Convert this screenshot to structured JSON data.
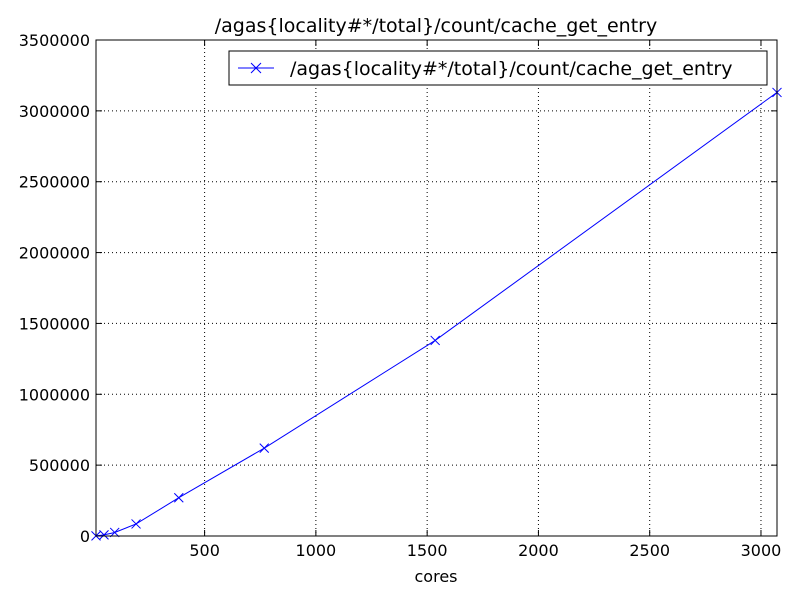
{
  "chart_data": {
    "type": "line",
    "title": "/agas{locality#*/total}/count/cache_get_entry",
    "xlabel": "cores",
    "ylabel": "",
    "xlim": [
      12,
      3072
    ],
    "ylim": [
      0,
      3500000
    ],
    "xticks": [
      500,
      1000,
      1500,
      2000,
      2500,
      3000
    ],
    "yticks": [
      0,
      500000,
      1000000,
      1500000,
      2000000,
      2500000,
      3000000,
      3500000
    ],
    "grid": true,
    "legend": "top-right",
    "series": [
      {
        "name": "/agas{locality#*/total}/count/cache_get_entry",
        "color": "#0000ff",
        "marker": "x",
        "x": [
          12,
          48,
          96,
          192,
          384,
          768,
          1536,
          3072
        ],
        "y": [
          1000,
          8000,
          25000,
          85000,
          270000,
          620000,
          1380000,
          3130000
        ]
      }
    ]
  }
}
